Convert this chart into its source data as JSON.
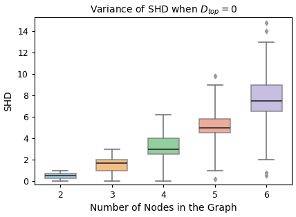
{
  "title": "Variance of SHD when $D_{top} = 0$",
  "xlabel": "Number of Nodes in the Graph",
  "ylabel": "SHD",
  "categories": [
    2,
    3,
    4,
    5,
    6
  ],
  "box_data": [
    {
      "label": "2",
      "whislo": 0.0,
      "q1": 0.25,
      "med": 0.5,
      "q3": 0.7,
      "whishi": 1.0,
      "fliers": []
    },
    {
      "label": "3",
      "whislo": 0.0,
      "q1": 1.0,
      "med": 1.7,
      "q3": 2.0,
      "whishi": 3.0,
      "fliers": []
    },
    {
      "label": "4",
      "whislo": 0.0,
      "q1": 2.5,
      "med": 3.0,
      "q3": 4.0,
      "whishi": 6.2,
      "fliers": []
    },
    {
      "label": "5",
      "whislo": 1.0,
      "q1": 4.5,
      "med": 5.0,
      "q3": 5.8,
      "whishi": 9.0,
      "fliers": [
        0.2,
        9.8
      ]
    },
    {
      "label": "6",
      "whislo": 2.0,
      "q1": 6.5,
      "med": 7.5,
      "q3": 9.0,
      "whishi": 13.0,
      "fliers": [
        0.5,
        0.8,
        14.0,
        14.8
      ]
    }
  ],
  "box_colors": [
    "#7eb6d4",
    "#f4a95a",
    "#6dbf7e",
    "#e8917a",
    "#b5aad9"
  ],
  "ylim": [
    -0.3,
    15.3
  ],
  "yticks": [
    0,
    2,
    4,
    6,
    8,
    10,
    12,
    14
  ],
  "figsize": [
    4.28,
    3.14
  ],
  "dpi": 100,
  "flier_color": "#999999",
  "flier_edge_color": "#999999",
  "median_color": "#444444",
  "whisker_color": "#777777",
  "cap_color": "#777777",
  "box_edge_color": "#777777"
}
